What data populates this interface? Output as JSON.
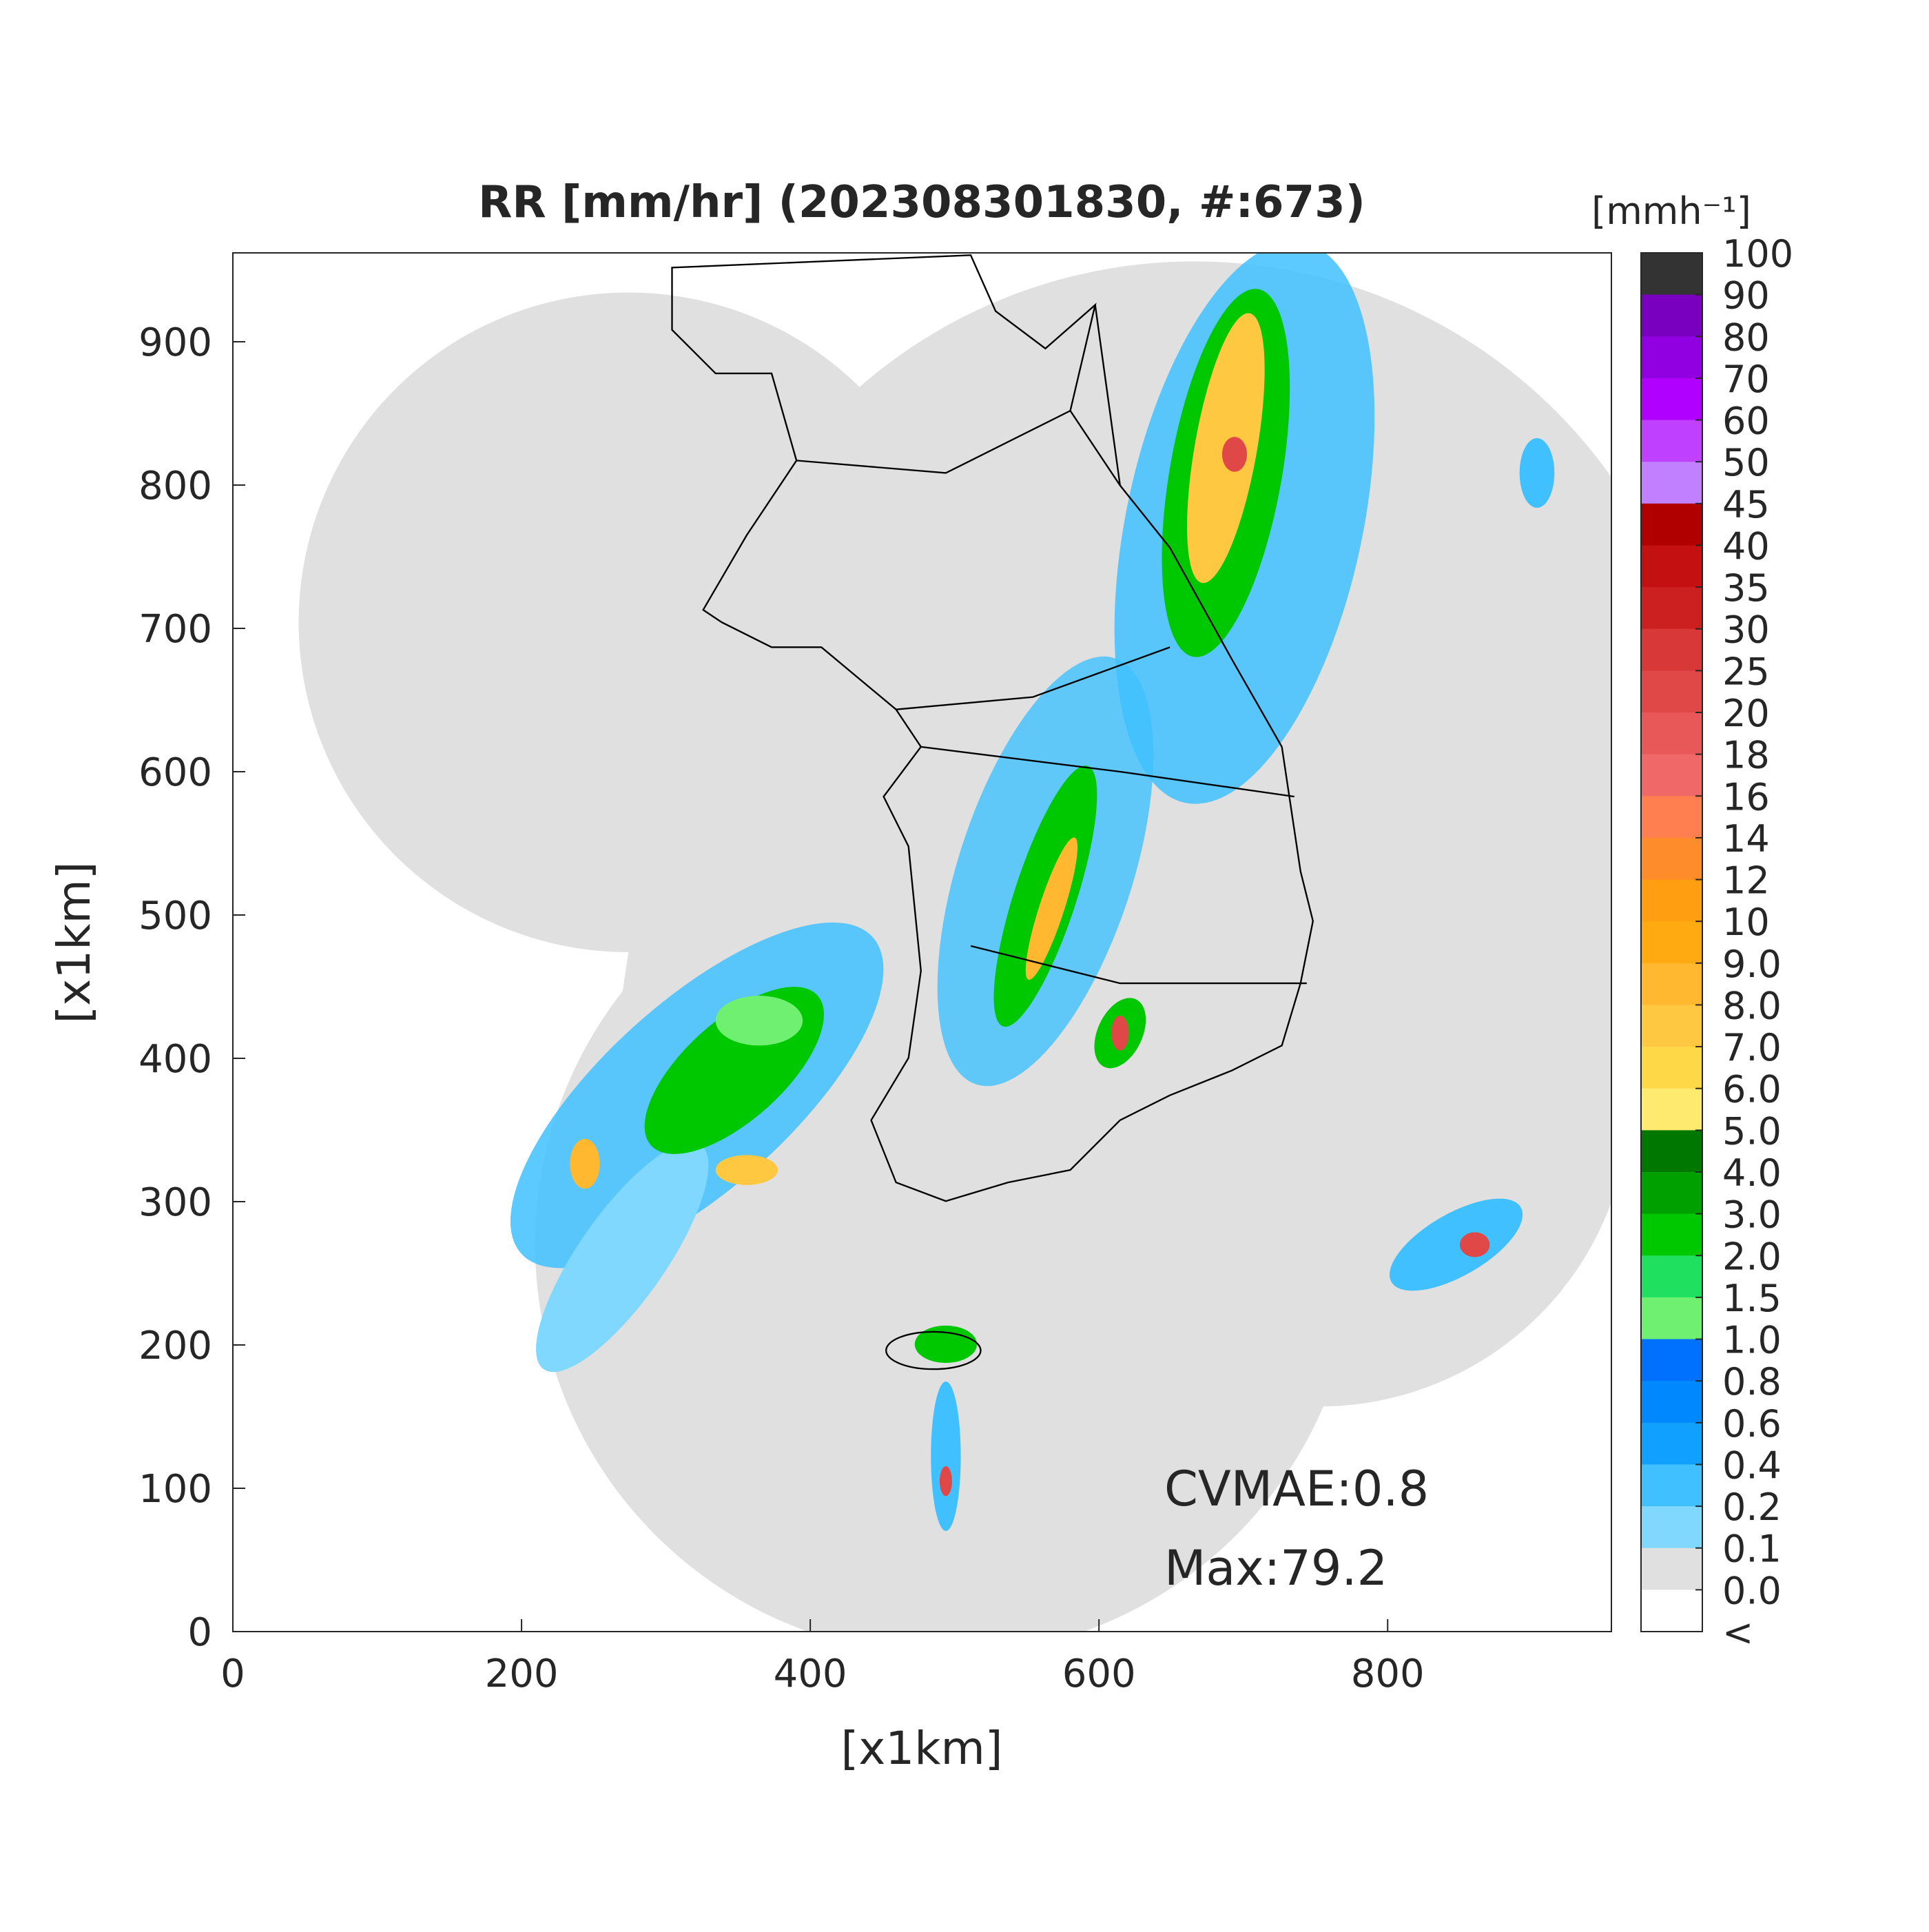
{
  "chart_data": {
    "type": "map",
    "title": "RR [mm/hr] (202308301830, #:673)",
    "x_label": "[x1km]",
    "y_label": "[x1km]",
    "xlim": [
      0,
      955
    ],
    "ylim": [
      0,
      962
    ],
    "xticks": [
      0,
      200,
      400,
      600,
      800
    ],
    "yticks": [
      0,
      100,
      200,
      300,
      400,
      500,
      600,
      700,
      800,
      900
    ],
    "annotations": [
      "CVMAE:0.8",
      "Max:79.2"
    ],
    "colorbar": {
      "unit_label": "[mmh⁻¹]",
      "levels": [
        100,
        90,
        80,
        70,
        60,
        50,
        45,
        40,
        35,
        30,
        25,
        20,
        18,
        16,
        14,
        12,
        10,
        {
          "value": 9,
          "label": "9.0"
        },
        {
          "value": 8,
          "label": "8.0"
        },
        {
          "value": 7,
          "label": "7.0"
        },
        {
          "value": 6,
          "label": "6.0"
        },
        {
          "value": 5,
          "label": "5.0"
        },
        {
          "value": 4,
          "label": "4.0"
        },
        {
          "value": 3,
          "label": "3.0"
        },
        {
          "value": 2,
          "label": "2.0"
        },
        1.5,
        {
          "value": 1,
          "label": "1.0"
        },
        0.8,
        0.6,
        0.4,
        0.2,
        0.1,
        {
          "value": 0,
          "label": "0.0"
        }
      ],
      "under_label": "<",
      "colors": [
        "#333333",
        "#7a00c0",
        "#9000e0",
        "#b000ff",
        "#c040ff",
        "#c080ff",
        "#b00000",
        "#c41010",
        "#cc2020",
        "#d83838",
        "#e04848",
        "#e85858",
        "#f06868",
        "#ff7f50",
        "#ff8c2a",
        "#ff9e10",
        "#ffaa10",
        "#ffb830",
        "#ffc840",
        "#ffd848",
        "#ffea70",
        "#007800",
        "#00a000",
        "#00c800",
        "#20e060",
        "#70f070",
        "#0070ff",
        "#0088ff",
        "#10a0ff",
        "#40c0ff",
        "#80d8ff",
        "#e0e0e0",
        "#ffffff"
      ]
    }
  }
}
